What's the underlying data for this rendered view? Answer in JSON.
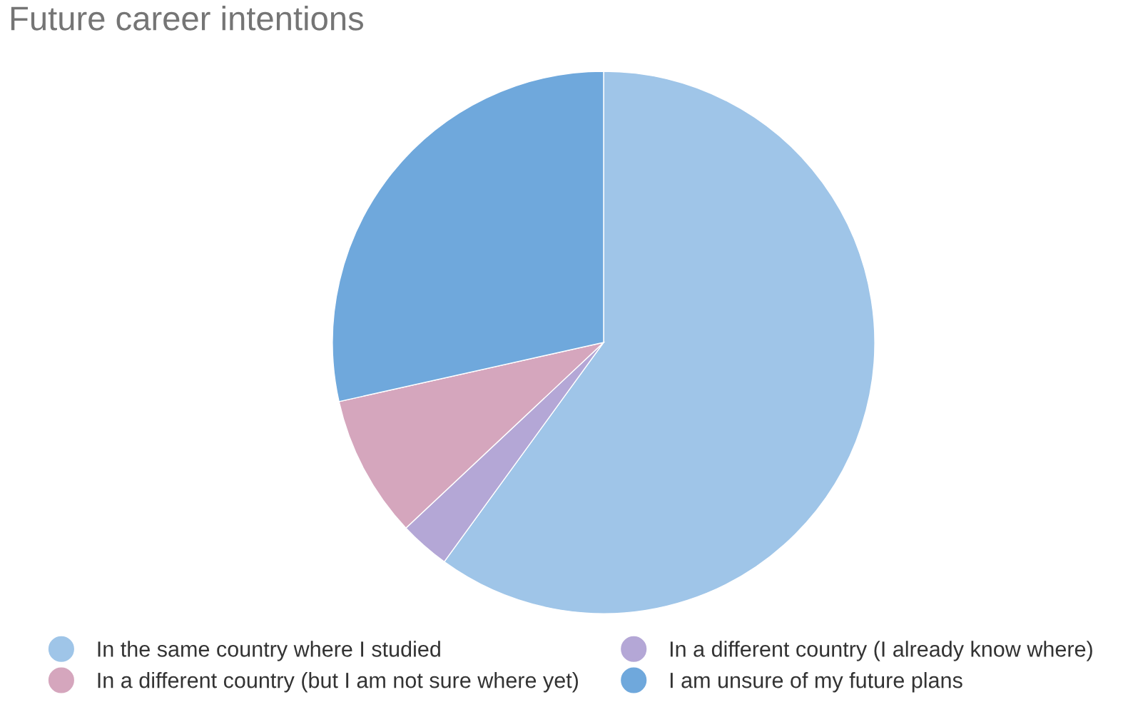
{
  "chart_data": {
    "type": "pie",
    "title": "Future career intentions",
    "categories": [
      "In the same country where I studied",
      "In a different country (I already know where)",
      "In a different country (but I am not sure where yet)",
      "I am unsure of my future plans"
    ],
    "values": [
      60,
      3,
      8.5,
      28.5
    ],
    "colors": [
      "#9fc5e8",
      "#b4a7d6",
      "#d5a6bd",
      "#6fa8dc"
    ],
    "legend": "bottom"
  }
}
